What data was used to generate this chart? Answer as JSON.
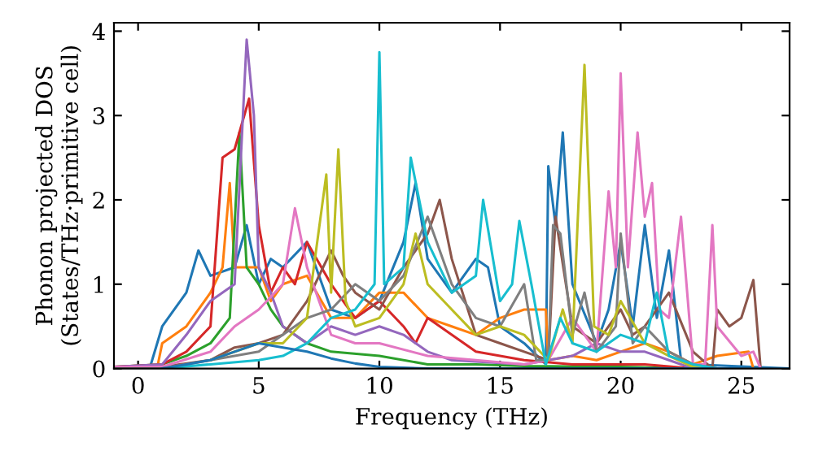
{
  "chart_data": {
    "type": "line",
    "xlabel": "Frequency (THz)",
    "ylabel": "Phonon projected DOS\n(States/THz·primitive cell)",
    "xlim": [
      -1,
      27
    ],
    "ylim": [
      0,
      4.1
    ],
    "xticks": [
      0,
      5,
      10,
      15,
      20,
      25
    ],
    "yticks": [
      0,
      1,
      2,
      3,
      4
    ],
    "grid": false,
    "legend": false,
    "marker": "none",
    "line_style": "solid",
    "series": [
      {
        "color": "#1f77b4",
        "x": [
          -1,
          0.5,
          1,
          2,
          2.5,
          3,
          4,
          4.5,
          5,
          5.5,
          6,
          7,
          8,
          9,
          10,
          11,
          11.5,
          12,
          13,
          14,
          14.5,
          15,
          16,
          16.9,
          17,
          17.3,
          17.6,
          18,
          19,
          19.5,
          20,
          20.5,
          21,
          21.5,
          22,
          22.5,
          23,
          27
        ],
        "values": [
          0.02,
          0.02,
          0.5,
          0.9,
          1.4,
          1.1,
          1.2,
          1.7,
          1.0,
          1.3,
          1.2,
          1.5,
          0.7,
          0.6,
          0.8,
          1.5,
          2.2,
          1.3,
          0.9,
          1.3,
          1.2,
          0.5,
          0.3,
          0.05,
          2.4,
          1.7,
          2.8,
          1.0,
          0.3,
          0.7,
          1.5,
          0.5,
          1.7,
          0.6,
          1.4,
          0.1,
          0.05,
          0.0
        ]
      },
      {
        "color": "#ff7f0e",
        "x": [
          -1,
          0.8,
          1,
          2,
          3,
          3.5,
          3.8,
          4,
          5,
          5.5,
          6,
          7,
          8,
          9,
          10,
          11,
          12,
          13,
          14,
          15,
          16,
          16.9,
          17,
          18,
          19,
          20,
          21,
          22,
          23,
          24,
          25.3,
          25.5,
          27
        ],
        "values": [
          0.02,
          0.02,
          0.3,
          0.5,
          0.9,
          1.2,
          2.2,
          1.2,
          1.2,
          0.8,
          1.0,
          1.1,
          0.6,
          0.6,
          0.9,
          0.9,
          0.6,
          0.5,
          0.4,
          0.6,
          0.7,
          0.7,
          0.1,
          0.15,
          0.1,
          0.2,
          0.3,
          0.2,
          0.05,
          0.15,
          0.2,
          0.0,
          0.0
        ]
      },
      {
        "color": "#2ca02c",
        "x": [
          -1,
          1,
          2,
          3,
          3.8,
          4.2,
          4.5,
          5,
          5.5,
          6,
          7,
          8,
          10,
          12,
          14,
          16,
          20,
          23,
          27
        ],
        "values": [
          0.02,
          0.05,
          0.15,
          0.3,
          0.6,
          2.8,
          1.2,
          1.0,
          0.7,
          0.5,
          0.3,
          0.2,
          0.15,
          0.05,
          0.05,
          0.03,
          0.02,
          0.0,
          0.0
        ]
      },
      {
        "color": "#d62728",
        "x": [
          -1,
          1,
          2,
          3,
          3.5,
          4,
          4.6,
          5,
          5.5,
          6,
          6.5,
          7,
          8,
          9,
          10,
          11,
          11.5,
          12,
          13,
          14,
          16,
          18,
          21,
          23,
          27
        ],
        "values": [
          0.02,
          0.05,
          0.2,
          0.5,
          2.5,
          2.6,
          3.2,
          1.7,
          0.9,
          1.2,
          1.0,
          1.5,
          1.0,
          0.6,
          0.8,
          0.5,
          0.3,
          0.6,
          0.4,
          0.2,
          0.1,
          0.05,
          0.05,
          0.0,
          0.0
        ]
      },
      {
        "color": "#9467bd",
        "x": [
          -1,
          1,
          2,
          3,
          4,
          4.5,
          4.8,
          5,
          5.5,
          6,
          7,
          8,
          9,
          10,
          11,
          12,
          13,
          16,
          18,
          19,
          20,
          21,
          22,
          23,
          27
        ],
        "values": [
          0.02,
          0.05,
          0.4,
          0.8,
          1.0,
          3.9,
          3.0,
          1.2,
          0.9,
          0.5,
          0.3,
          0.5,
          0.4,
          0.5,
          0.4,
          0.2,
          0.1,
          0.05,
          0.15,
          0.3,
          0.2,
          0.2,
          0.1,
          0.0,
          0.0
        ]
      },
      {
        "color": "#8c564b",
        "x": [
          -1,
          1,
          3,
          4,
          5,
          6,
          7,
          8,
          8.5,
          9,
          10,
          11,
          12,
          12.5,
          13,
          14,
          15,
          16,
          17,
          17.3,
          18,
          19,
          20,
          20.5,
          21,
          22,
          23,
          23.8,
          24,
          24.5,
          25,
          25.5,
          25.8,
          27
        ],
        "values": [
          0.02,
          0.02,
          0.1,
          0.25,
          0.3,
          0.4,
          0.8,
          1.4,
          1.1,
          0.9,
          0.7,
          1.2,
          1.6,
          2.0,
          1.3,
          0.4,
          0.3,
          0.2,
          0.1,
          1.8,
          0.5,
          0.3,
          0.7,
          0.4,
          0.5,
          0.9,
          0.2,
          0.0,
          0.7,
          0.5,
          0.6,
          1.05,
          0.0,
          0.0
        ]
      },
      {
        "color": "#e377c2",
        "x": [
          -1,
          1,
          3,
          4,
          5,
          6,
          6.5,
          7,
          8,
          9,
          10,
          12,
          14,
          16,
          17,
          18,
          19,
          19.5,
          19.8,
          20,
          20.3,
          20.7,
          21,
          21.3,
          21.6,
          22,
          22.5,
          23,
          23.5,
          23.8,
          24,
          25,
          25.5,
          25.8,
          27
        ],
        "values": [
          0.02,
          0.02,
          0.2,
          0.5,
          0.7,
          1.0,
          1.9,
          1.2,
          0.4,
          0.3,
          0.3,
          0.15,
          0.1,
          0.05,
          0.1,
          0.6,
          0.2,
          2.1,
          1.2,
          3.5,
          1.2,
          2.8,
          1.8,
          2.2,
          0.7,
          0.6,
          1.8,
          0.05,
          0.05,
          1.7,
          0.5,
          0.15,
          0.2,
          0.0,
          0.0
        ]
      },
      {
        "color": "#7f7f7f",
        "x": [
          -1,
          1,
          3,
          5,
          6,
          7,
          8,
          9,
          10,
          11,
          12,
          13,
          14,
          15,
          16,
          16.5,
          17,
          17.2,
          17.5,
          18,
          18.5,
          19,
          19.8,
          20,
          20.5,
          21,
          22,
          23,
          24,
          27
        ],
        "values": [
          0.0,
          0.0,
          0.1,
          0.2,
          0.4,
          0.6,
          0.7,
          1.0,
          0.8,
          1.1,
          1.8,
          1.0,
          0.6,
          0.5,
          1.0,
          0.1,
          0.1,
          1.7,
          1.6,
          0.4,
          0.9,
          0.2,
          0.5,
          1.6,
          0.3,
          0.5,
          0.2,
          0.05,
          0.0,
          0.0
        ]
      },
      {
        "color": "#bcbd22",
        "x": [
          3,
          5,
          6,
          7,
          7.8,
          8,
          8.3,
          8.6,
          9,
          10,
          11,
          11.5,
          12,
          13,
          14,
          15,
          16,
          17,
          17.6,
          18,
          18.5,
          18.9,
          19.5,
          20,
          21,
          22,
          23,
          24,
          27
        ],
        "values": [
          0.1,
          0.3,
          0.3,
          0.6,
          2.3,
          0.9,
          2.6,
          0.8,
          0.5,
          0.6,
          1.0,
          1.6,
          1.0,
          0.7,
          0.4,
          0.5,
          0.4,
          0.1,
          0.7,
          0.3,
          3.6,
          0.5,
          0.4,
          0.8,
          0.3,
          0.15,
          0.02,
          0.0,
          0.0
        ]
      },
      {
        "color": "#17becf",
        "x": [
          1,
          3,
          5,
          6,
          7,
          8,
          9,
          9.8,
          10,
          10.2,
          11,
          11.3,
          12,
          13,
          14,
          14.3,
          15,
          15.5,
          15.8,
          16.3,
          16.9,
          17.5,
          18,
          19,
          20,
          21,
          21.5,
          22,
          23,
          24,
          27
        ],
        "values": [
          0.0,
          0.05,
          0.1,
          0.15,
          0.3,
          0.6,
          0.7,
          1.0,
          3.75,
          1.0,
          1.2,
          2.5,
          1.5,
          0.9,
          1.1,
          2.0,
          0.8,
          1.0,
          1.75,
          1.0,
          0.05,
          0.6,
          0.3,
          0.2,
          0.4,
          0.3,
          0.9,
          0.15,
          0.05,
          0.0,
          0.0
        ]
      },
      {
        "color": "#1f77b4",
        "x": [
          1,
          2,
          3,
          4,
          5,
          6,
          7,
          8,
          9,
          10,
          12,
          27
        ],
        "values": [
          0.0,
          0.05,
          0.1,
          0.2,
          0.3,
          0.25,
          0.2,
          0.12,
          0.06,
          0.02,
          0.0,
          0.0
        ]
      }
    ]
  }
}
